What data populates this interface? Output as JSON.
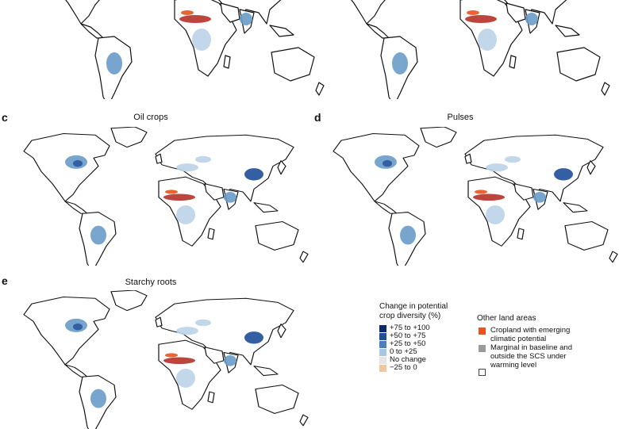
{
  "panels": [
    {
      "letter": "",
      "title": ""
    },
    {
      "letter": "",
      "title": ""
    },
    {
      "letter": "c",
      "title": "Oil crops"
    },
    {
      "letter": "d",
      "title": "Pulses"
    },
    {
      "letter": "e",
      "title": "Starchy roots"
    }
  ],
  "legend": {
    "title_line1": "Change in potential",
    "title_line2": "crop diversity (%)",
    "items": [
      {
        "label": "+75 to +100",
        "color": "#0b2a6b"
      },
      {
        "label": "+50 to +75",
        "color": "#1f4e9a"
      },
      {
        "label": "+25 to +50",
        "color": "#4a80b8"
      },
      {
        "label": "0 to +25",
        "color": "#a7c6e0"
      },
      {
        "label": "No change",
        "color": "#e4e4e4"
      },
      {
        "label": "−25 to 0",
        "color": "#f0c8a0"
      }
    ]
  },
  "other_land": {
    "title": "Other land areas",
    "items": [
      {
        "line1": "Cropland with emerging",
        "line2": "climatic potential",
        "line3": "",
        "color": "#e8541e"
      },
      {
        "line1": "Marginal in baseline and",
        "line2": "outside the SCS under",
        "line3": "warming level",
        "color": "#9a9a9a"
      },
      {
        "line1": "",
        "line2": "",
        "line3": "",
        "color": "#ffffff"
      }
    ]
  },
  "colors": {
    "coast": "#111111",
    "blue_dark": "#1f4e9a",
    "blue_mid": "#6a9cc8",
    "blue_light": "#bcd3e8",
    "red": "#b5322a",
    "orange": "#e8541e",
    "grey": "#c8c8c8"
  }
}
